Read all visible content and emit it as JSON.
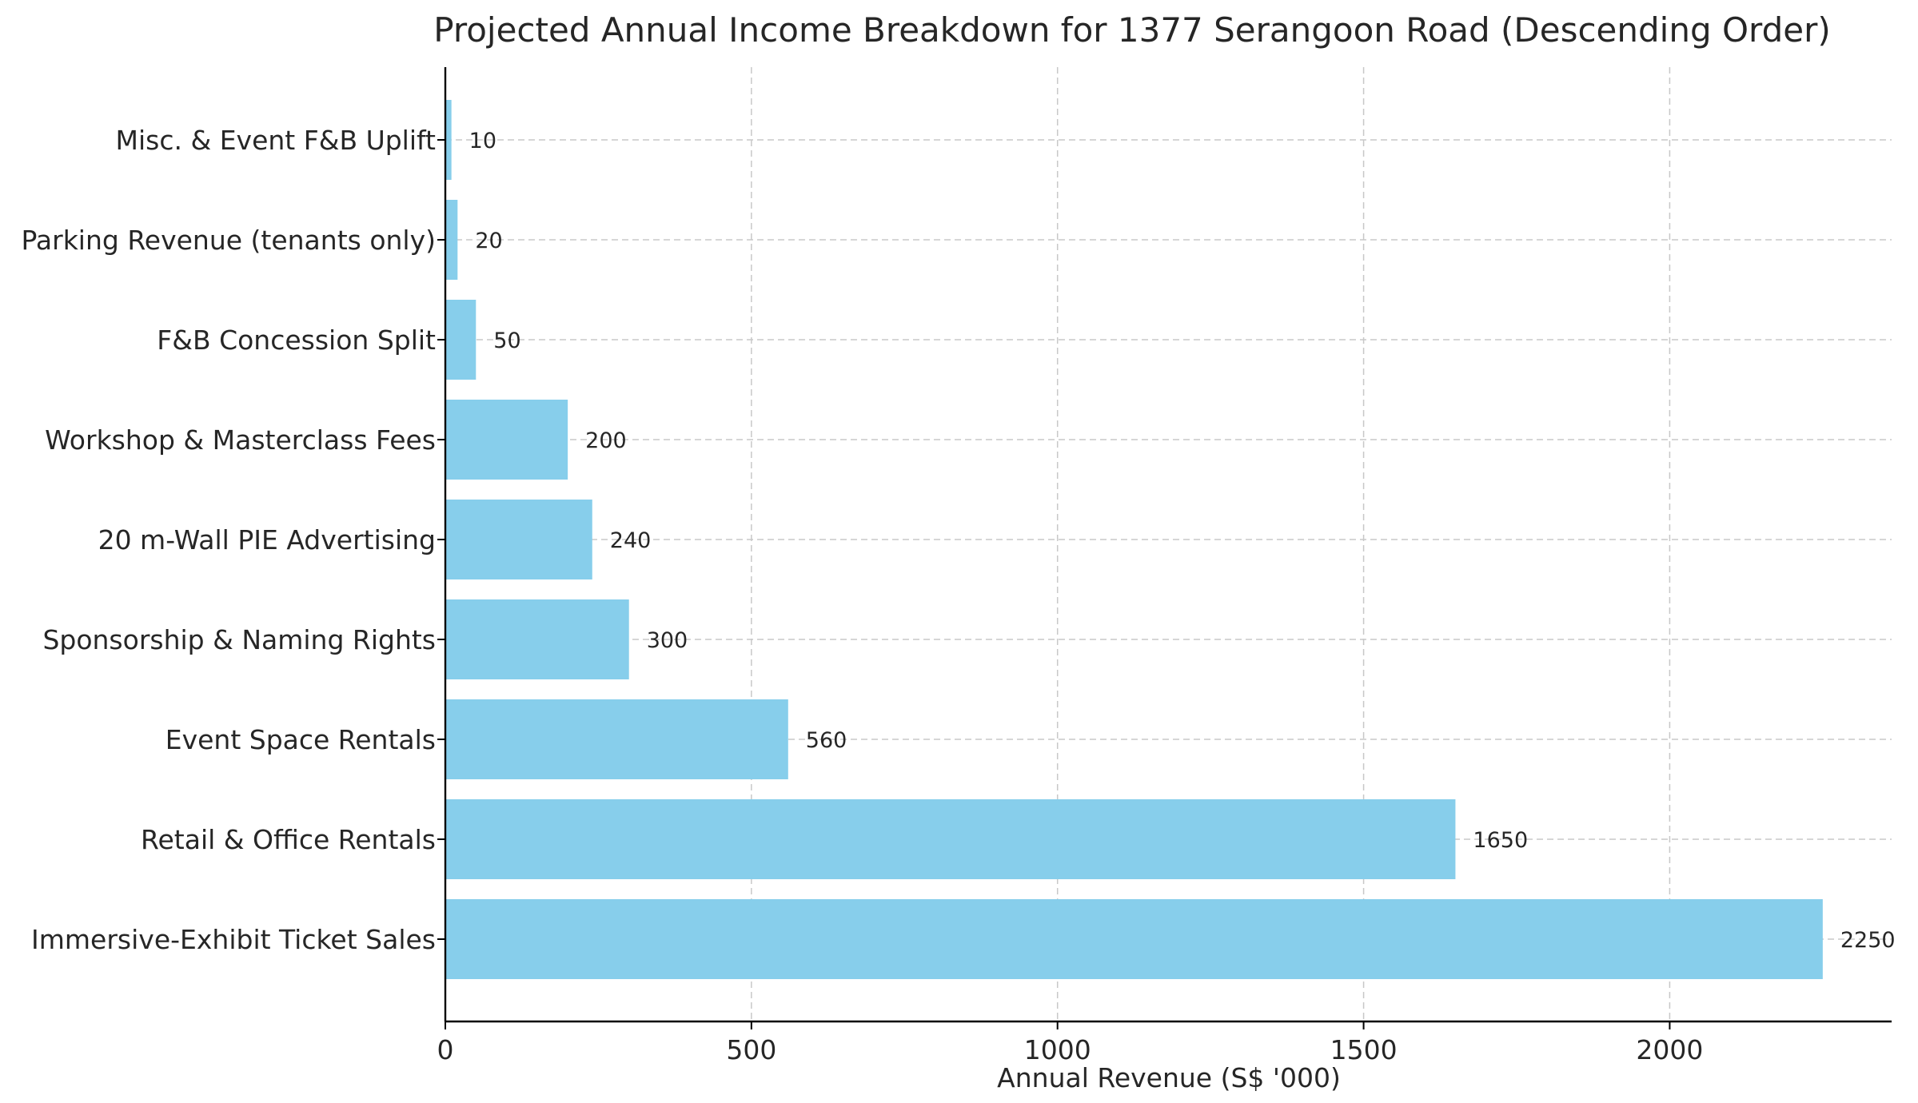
{
  "chart_data": {
    "type": "bar",
    "orientation": "horizontal",
    "title": "Projected Annual Income Breakdown for 1377 Serangoon Road (Descending Order)",
    "xlabel": "Annual Revenue (S$ '000)",
    "ylabel": "",
    "xlim": [
      0,
      2362.5
    ],
    "xticks": [
      0,
      500,
      1000,
      1500,
      2000
    ],
    "grid": true,
    "bar_color": "#87ceeb",
    "categories": [
      "Immersive-Exhibit Ticket Sales",
      "Retail & Office Rentals",
      "Event Space Rentals",
      "Sponsorship & Naming Rights",
      "20 m-Wall PIE Advertising",
      "Workshop & Masterclass Fees",
      "F&B Concession Split",
      "Parking Revenue (tenants only)",
      "Misc. & Event F&B Uplift"
    ],
    "values": [
      2250,
      1650,
      560,
      300,
      240,
      200,
      50,
      20,
      10
    ],
    "value_labels": [
      "2250",
      "1650",
      "560",
      "300",
      "240",
      "200",
      "50",
      "20",
      "10"
    ]
  }
}
